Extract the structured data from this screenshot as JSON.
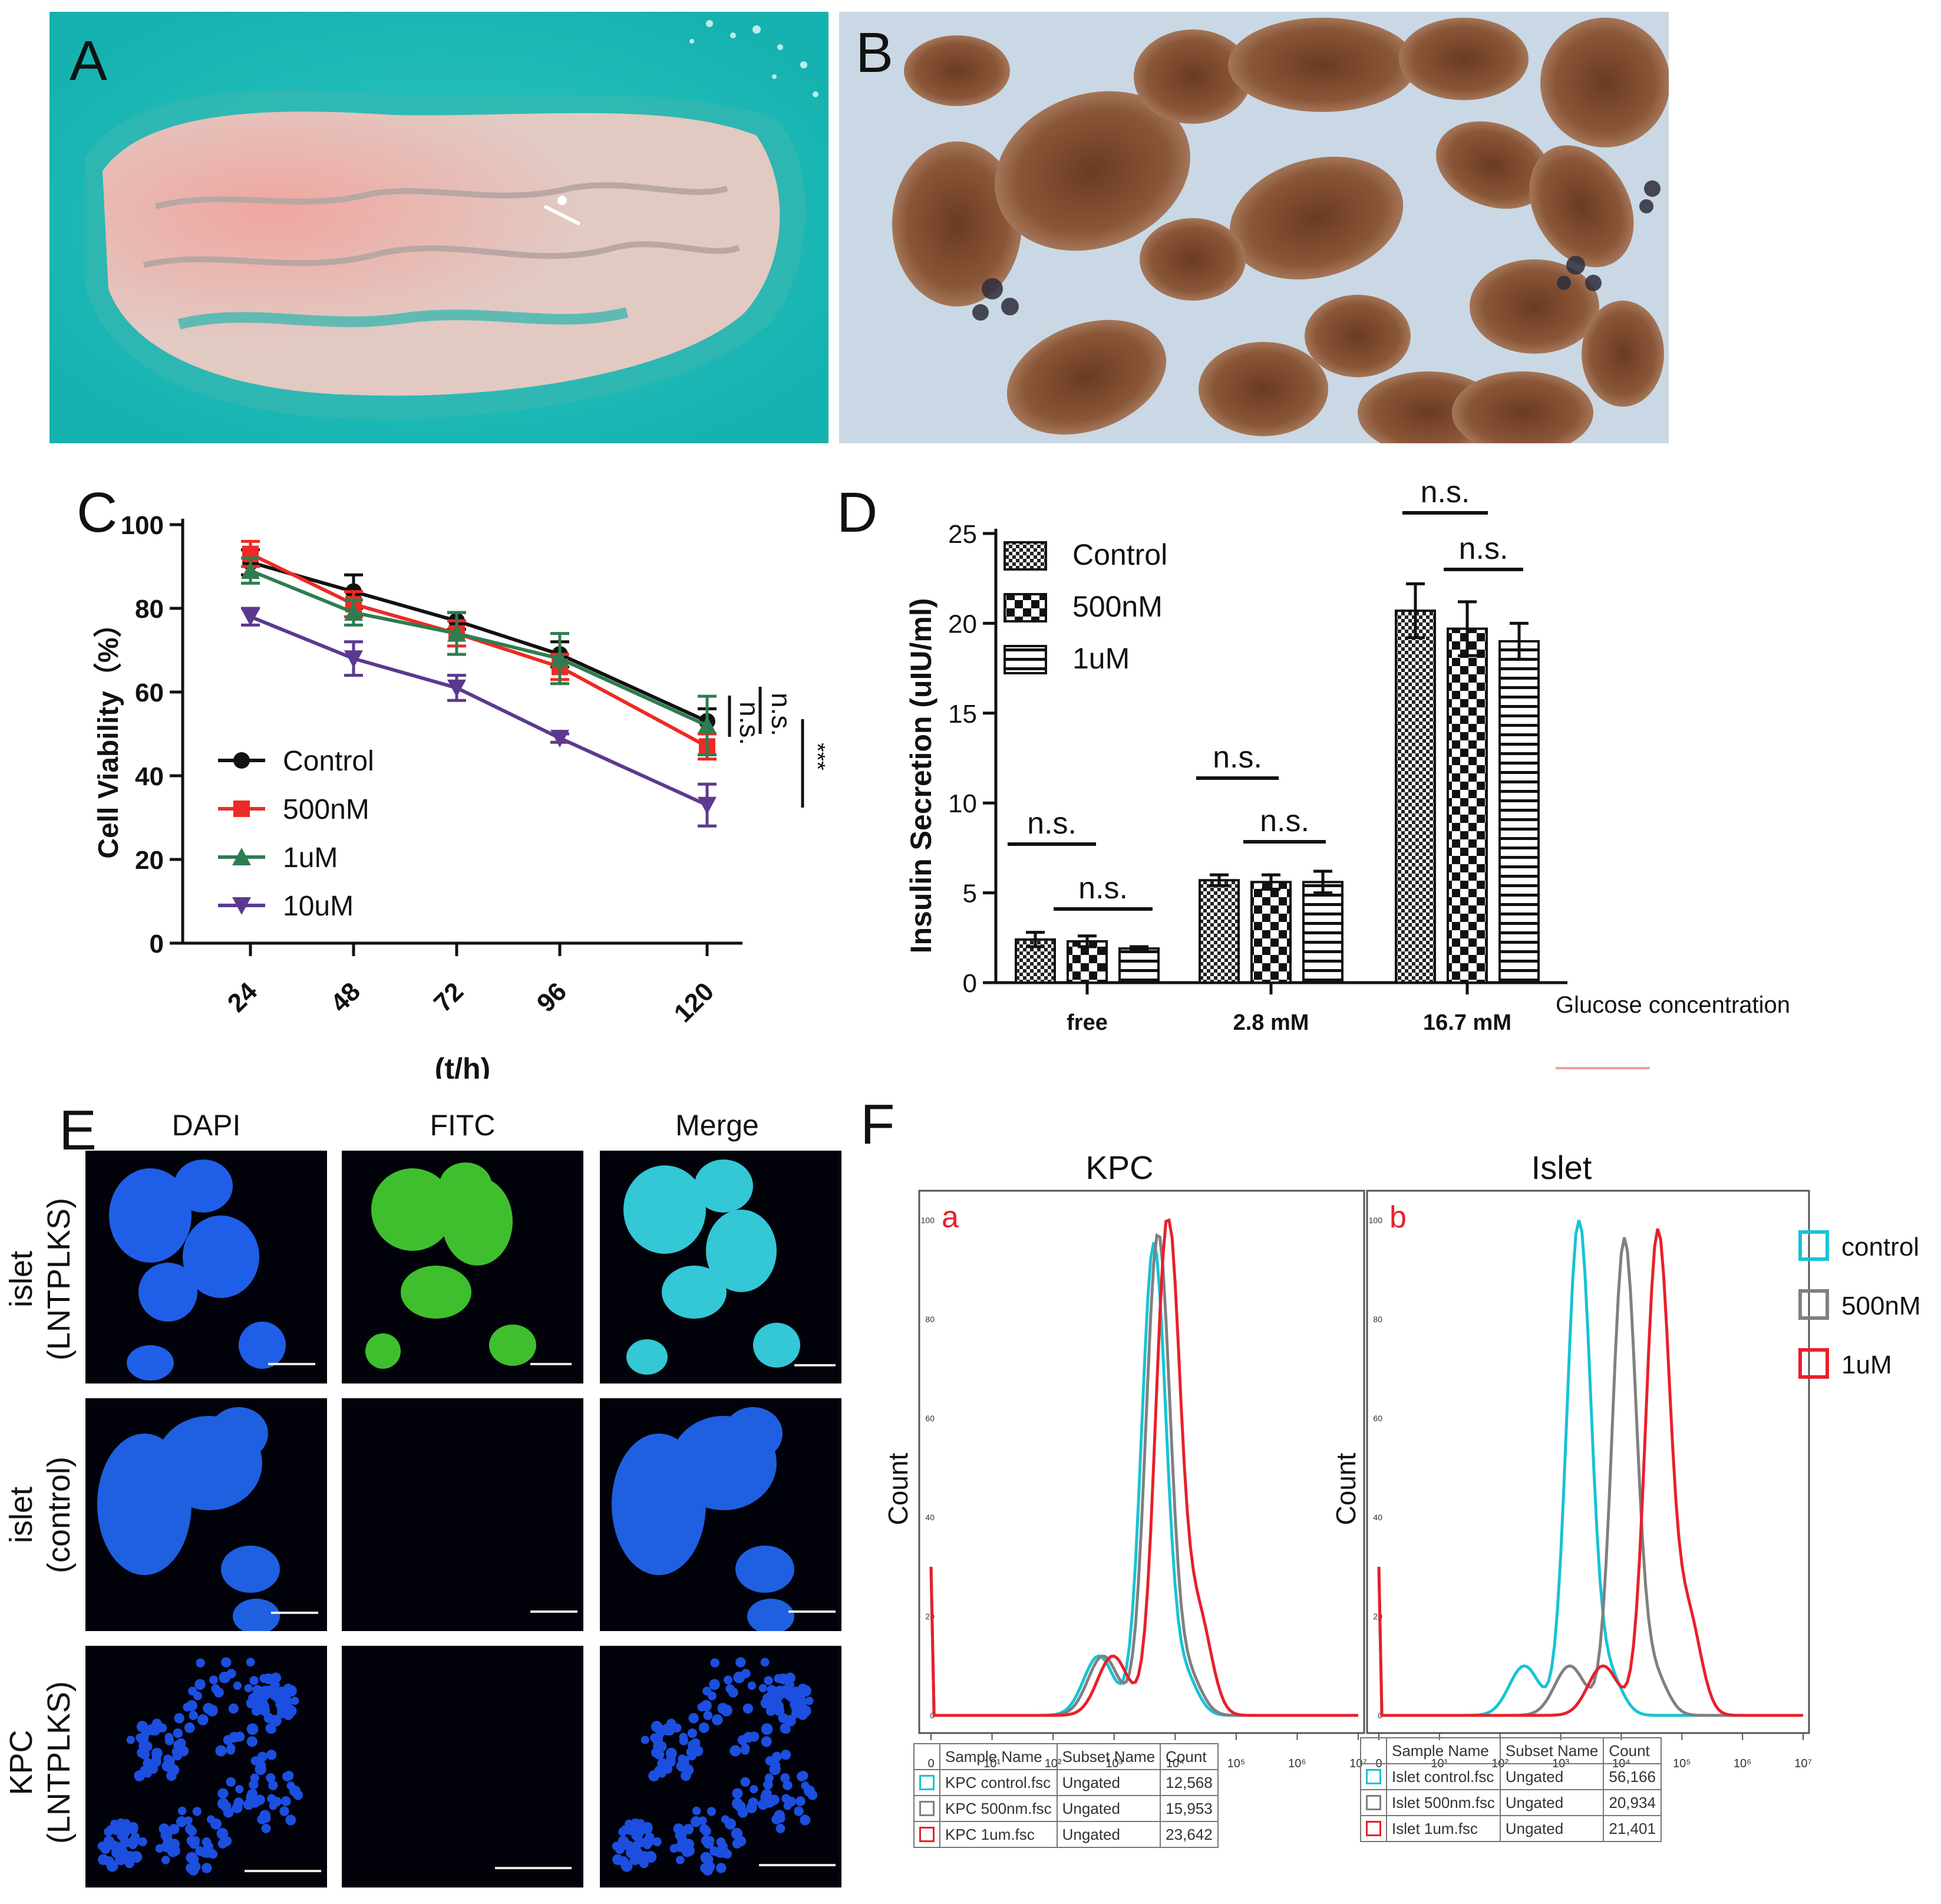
{
  "panels": {
    "A": {
      "letter": "A"
    },
    "B": {
      "letter": "B"
    },
    "C": {
      "letter": "C"
    },
    "D": {
      "letter": "D"
    },
    "E": {
      "letter": "E"
    },
    "F": {
      "letter": "F"
    }
  },
  "chart_data": [
    {
      "id": "C",
      "type": "line",
      "xlabel": "(t/h)",
      "ylabel": "Cell Viability（%）",
      "categories": [
        "24",
        "48",
        "72",
        "96",
        "120"
      ],
      "ylim": [
        0,
        100
      ],
      "yticks": [
        "0",
        "20",
        "40",
        "60",
        "80",
        "100"
      ],
      "legend_position": "bottom-left",
      "series": [
        {
          "name": "Control",
          "color": "#111111",
          "marker": "circle",
          "values": [
            91,
            84,
            77,
            69,
            53
          ],
          "errors": [
            3,
            4,
            2,
            3,
            3
          ]
        },
        {
          "name": "500nM",
          "color": "#ee2a24",
          "marker": "square",
          "values": [
            93,
            81,
            74,
            66,
            47
          ],
          "errors": [
            3,
            3,
            3,
            3,
            3
          ]
        },
        {
          "name": "1uM",
          "color": "#2e7d4f",
          "marker": "triangle-up",
          "values": [
            89,
            79,
            74,
            68,
            52
          ],
          "errors": [
            3,
            3,
            5,
            6,
            7
          ]
        },
        {
          "name": "10uM",
          "color": "#5b3a8e",
          "marker": "triangle-down",
          "values": [
            78,
            68,
            61,
            49,
            33
          ],
          "errors": [
            2,
            4,
            3,
            1,
            5
          ]
        }
      ],
      "annotations": [
        "n.s.",
        "n.s.",
        "***"
      ]
    },
    {
      "id": "D",
      "type": "bar",
      "xlabel": "Glucose concentration",
      "ylabel": "Insulin Secretion (uIU/ml)",
      "categories": [
        "free",
        "2.8 mM",
        "16.7 mM"
      ],
      "ylim": [
        0,
        25
      ],
      "yticks": [
        "0",
        "5",
        "10",
        "15",
        "20",
        "25"
      ],
      "legend_position": "top-left",
      "series": [
        {
          "name": "Control",
          "pattern": "fine-check",
          "values": [
            2.4,
            5.7,
            20.7
          ],
          "errors": [
            0.4,
            0.3,
            1.5
          ]
        },
        {
          "name": "500nM",
          "pattern": "coarse-check",
          "values": [
            2.3,
            5.6,
            19.7
          ],
          "errors": [
            0.3,
            0.4,
            1.5
          ]
        },
        {
          "name": "1uM",
          "pattern": "horizontal-lines",
          "values": [
            1.9,
            5.6,
            19.0
          ],
          "errors": [
            0.1,
            0.6,
            1.0
          ]
        }
      ],
      "annotations": [
        "n.s.",
        "n.s.",
        "n.s.",
        "n.s.",
        "n.s.",
        "n.s."
      ]
    },
    {
      "id": "F-a",
      "type": "line",
      "title": "KPC",
      "sublabel": "a",
      "ylabel": "Count",
      "yticks": [
        "0",
        "20",
        "40",
        "60",
        "80",
        "100"
      ],
      "xticks": [
        "0",
        "10¹",
        "10²",
        "10³",
        "10⁴",
        "10⁵",
        "10⁶",
        "10⁷"
      ],
      "series": [
        {
          "name": "KPC control.fsc",
          "color": "#17c3d6",
          "peak_log": 3.65,
          "peak": 95
        },
        {
          "name": "KPC 500nm.fsc",
          "color": "#808080",
          "peak_log": 3.72,
          "peak": 97
        },
        {
          "name": "KPC 1um.fsc",
          "color": "#e8202a",
          "peak_log": 3.88,
          "peak": 100
        }
      ],
      "table": {
        "headers": [
          "Sample Name",
          "Subset Name",
          "Count"
        ],
        "rows": [
          [
            "KPC control.fsc",
            "Ungated",
            "12,568"
          ],
          [
            "KPC 500nm.fsc",
            "Ungated",
            "15,953"
          ],
          [
            "KPC 1um.fsc",
            "Ungated",
            "23,642"
          ]
        ]
      }
    },
    {
      "id": "F-b",
      "type": "line",
      "title": "Islet",
      "sublabel": "b",
      "ylabel": "Count",
      "yticks": [
        "0",
        "20",
        "40",
        "60",
        "80",
        "100"
      ],
      "xticks": [
        "0",
        "10¹",
        "10²",
        "10³",
        "10⁴",
        "10⁵",
        "10⁶",
        "10⁷"
      ],
      "series": [
        {
          "name": "Islet control.fsc",
          "color": "#17c3d6",
          "peak_log": 3.3,
          "peak": 100
        },
        {
          "name": "Islet 500nm.fsc",
          "color": "#808080",
          "peak_log": 4.05,
          "peak": 96
        },
        {
          "name": "Islet 1um.fsc",
          "color": "#e8202a",
          "peak_log": 4.6,
          "peak": 97
        }
      ],
      "table": {
        "headers": [
          "Sample Name",
          "Subset Name",
          "Count"
        ],
        "rows": [
          [
            "Islet control.fsc",
            "Ungated",
            "56,166"
          ],
          [
            "Islet 500nm.fsc",
            "Ungated",
            "20,934"
          ],
          [
            "Islet 1um.fsc",
            "Ungated",
            "21,401"
          ]
        ]
      },
      "legend": [
        {
          "name": "control",
          "color": "#17c3d6"
        },
        {
          "name": "500nM",
          "color": "#808080"
        },
        {
          "name": "1uM",
          "color": "#e8202a"
        }
      ]
    }
  ],
  "panelE": {
    "columns": [
      "DAPI",
      "FITC",
      "Merge"
    ],
    "rows": [
      "islet\n(LNTPLKS)",
      "islet\n(control)",
      "KPC\n(LNTPLKS)"
    ],
    "row_lines": [
      [
        "islet",
        "(LNTPLKS)"
      ],
      [
        "islet",
        "(control)"
      ],
      [
        "KPC",
        "(LNTPLKS)"
      ]
    ]
  }
}
